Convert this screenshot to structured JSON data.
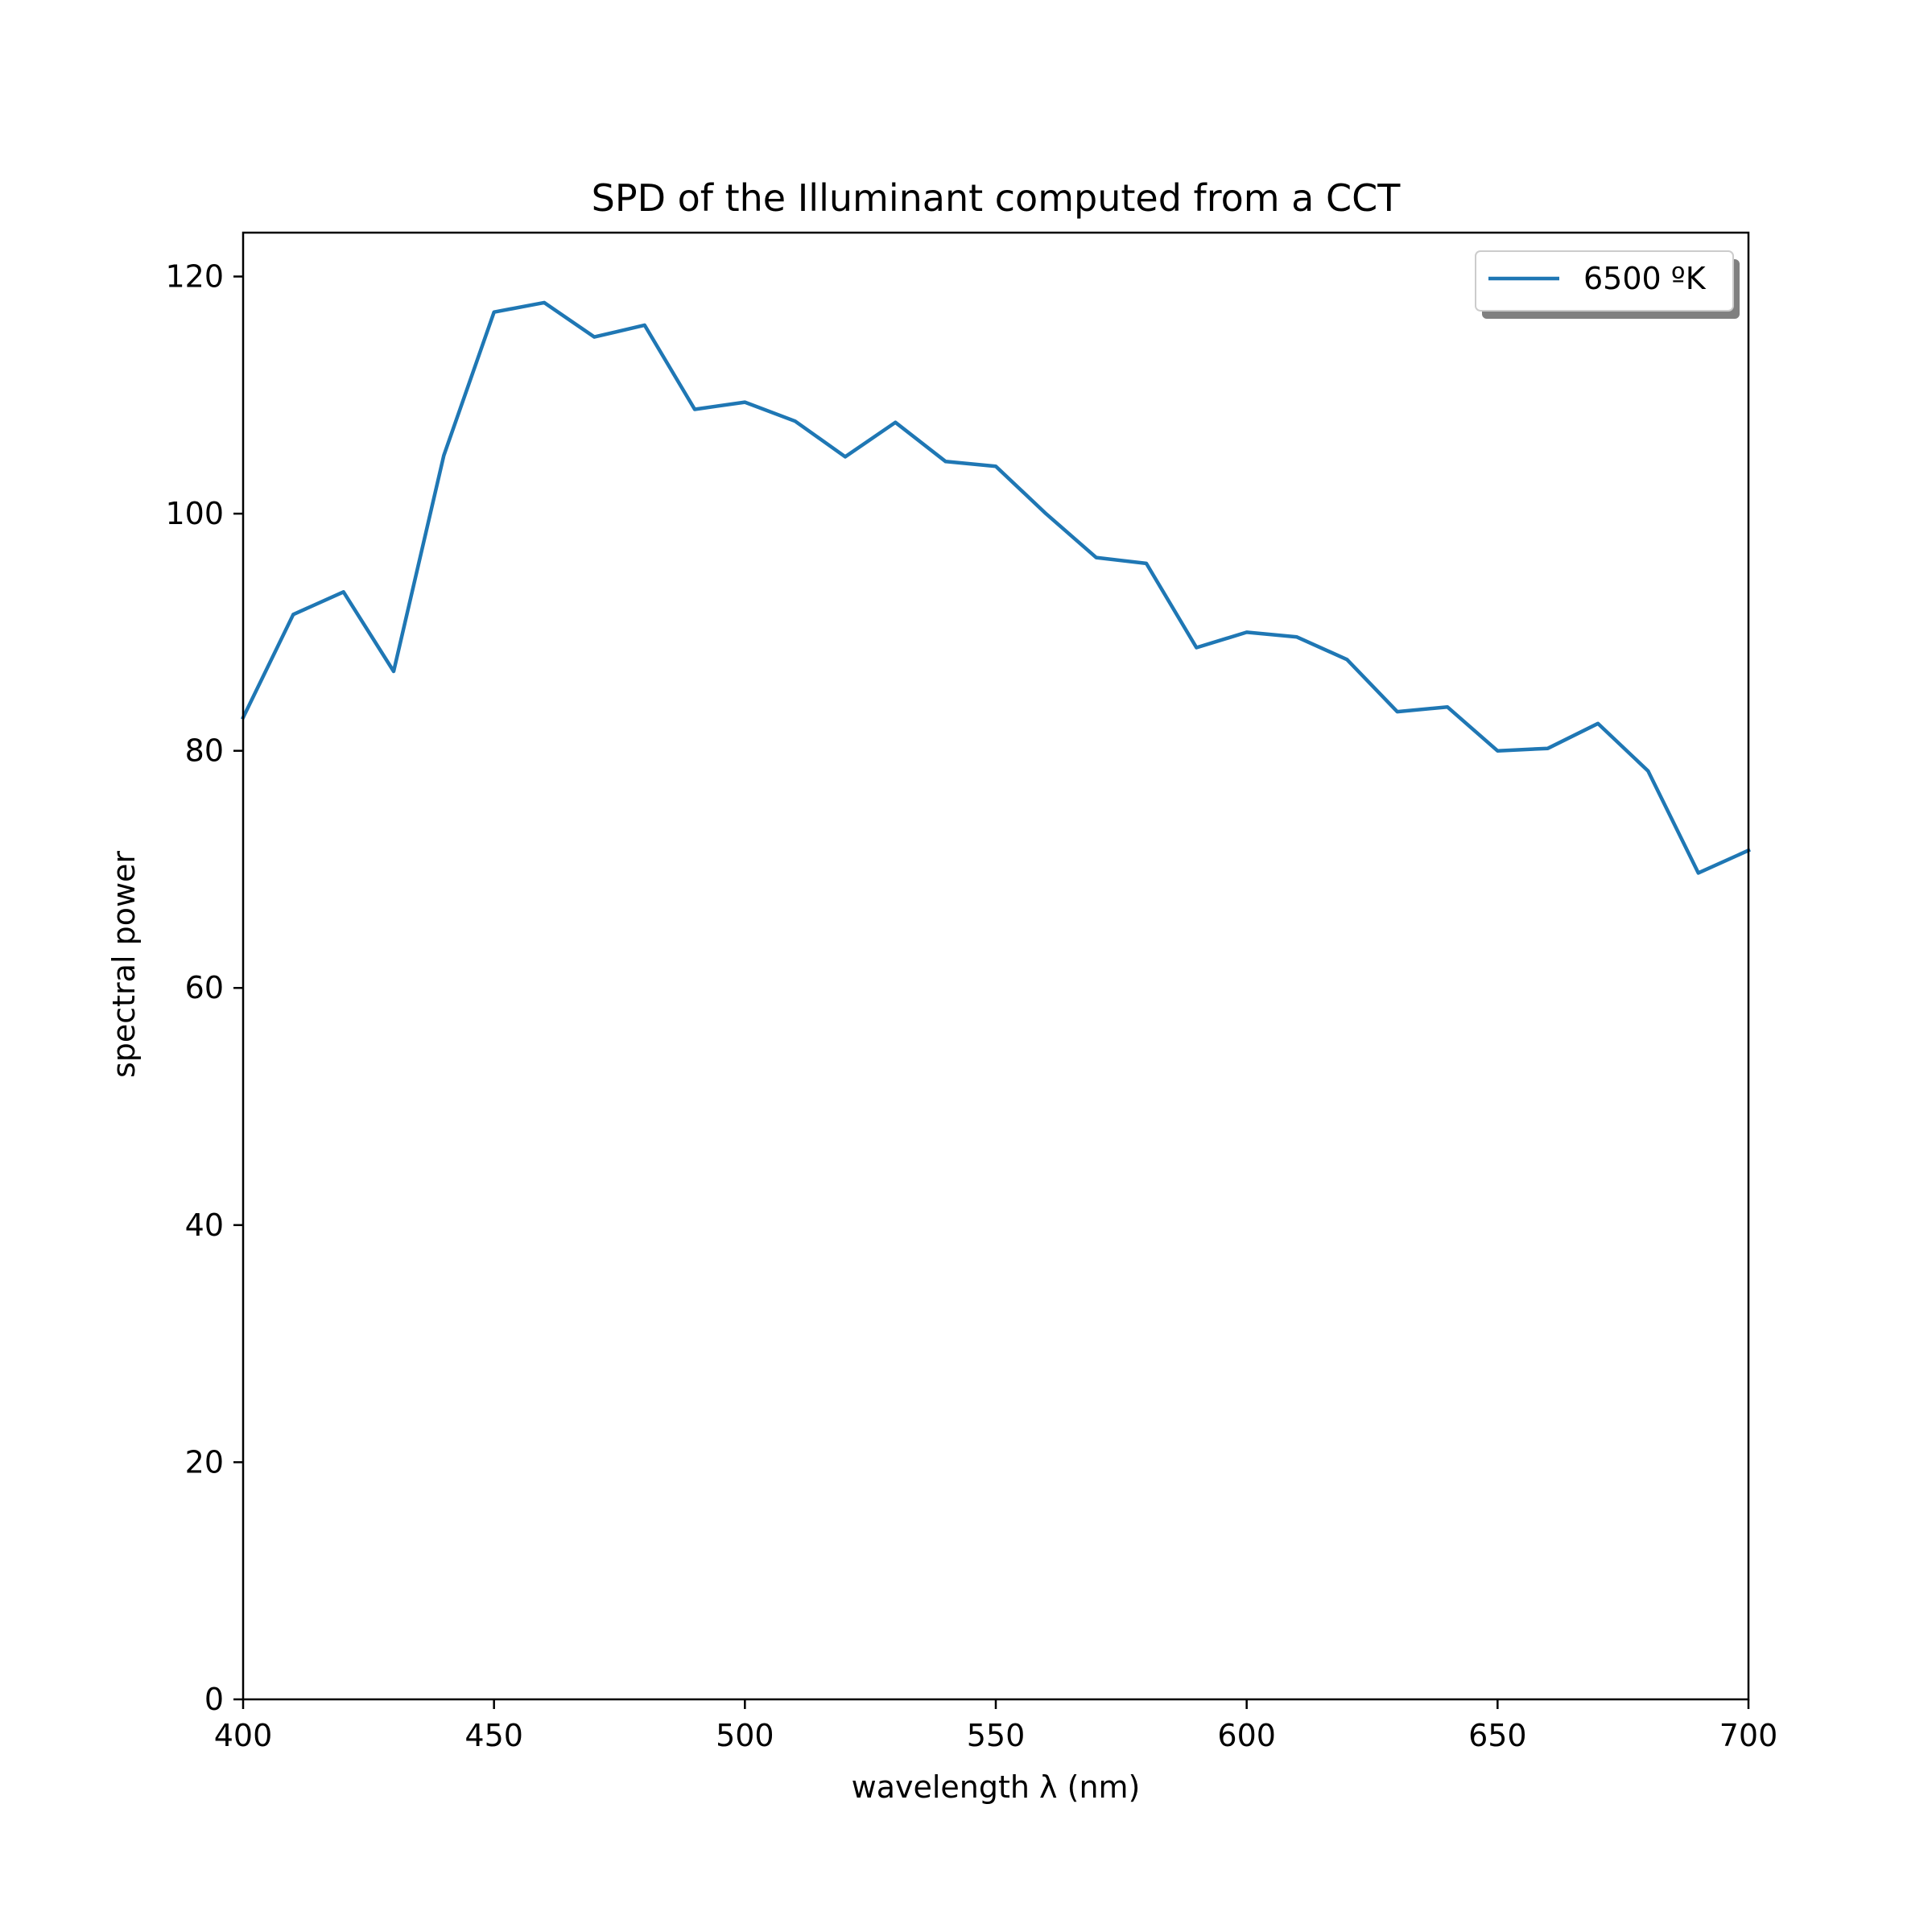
{
  "chart_data": {
    "type": "line",
    "title": "SPD of the Illuminant computed from a CCT",
    "xlabel": "wavelength λ (nm)",
    "ylabel": "spectral power",
    "xlim": [
      400,
      700
    ],
    "ylim": [
      0,
      123.7
    ],
    "xticks": [
      400,
      450,
      500,
      550,
      600,
      650,
      700
    ],
    "yticks": [
      0,
      20,
      40,
      60,
      80,
      100,
      120
    ],
    "grid": false,
    "legend_position": "top-right",
    "series": [
      {
        "name": "6500 ºK",
        "color": "#1f77b4",
        "x": [
          400,
          410,
          420,
          430,
          440,
          450,
          460,
          470,
          480,
          490,
          500,
          510,
          520,
          530,
          540,
          550,
          560,
          570,
          580,
          590,
          600,
          610,
          620,
          630,
          640,
          650,
          660,
          670,
          680,
          690,
          700
        ],
        "y": [
          82.8,
          91.5,
          93.4,
          86.7,
          104.9,
          117.0,
          117.8,
          114.9,
          115.9,
          108.8,
          109.4,
          107.8,
          104.8,
          107.7,
          104.4,
          104.0,
          100.0,
          96.3,
          95.8,
          88.7,
          90.0,
          89.6,
          87.7,
          83.3,
          83.7,
          80.0,
          80.2,
          82.3,
          78.3,
          69.7,
          71.6
        ]
      }
    ]
  }
}
